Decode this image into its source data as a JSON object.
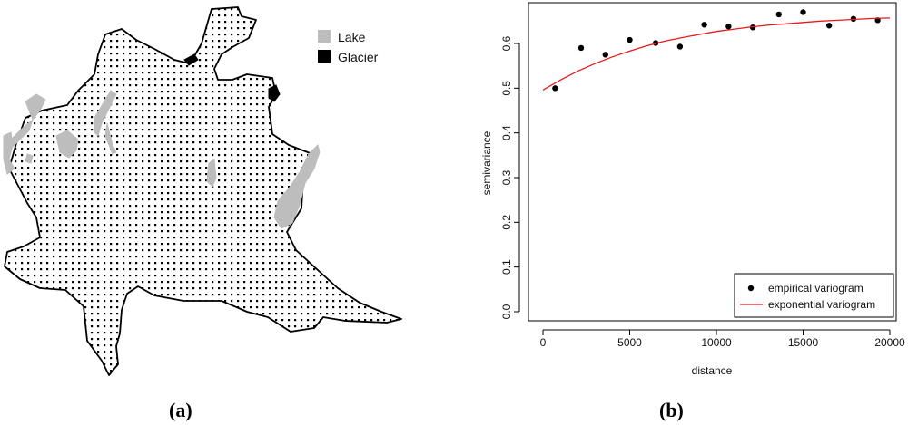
{
  "panel_a": {
    "label": "(a)",
    "legend": [
      {
        "label": "Lake",
        "color": "#bdbdbd"
      },
      {
        "label": "Glacier",
        "color": "#000000"
      }
    ]
  },
  "panel_b": {
    "label": "(b)"
  },
  "chart_data": {
    "type": "scatter",
    "xlabel": "distance",
    "ylabel": "semivariance",
    "xlim": [
      0,
      20000
    ],
    "ylim": [
      0,
      0.7
    ],
    "xticks": [
      0,
      5000,
      10000,
      15000,
      20000
    ],
    "yticks": [
      0.0,
      0.1,
      0.2,
      0.3,
      0.4,
      0.5,
      0.6
    ],
    "ytick_labels": [
      "0.0",
      "0.1",
      "0.2",
      "0.3",
      "0.4",
      "0.5",
      "0.6"
    ],
    "legend_position": "bottom-right",
    "series": [
      {
        "name": "empirical variogram",
        "kind": "points",
        "color": "#000000",
        "x": [
          700,
          2200,
          3600,
          5000,
          6500,
          7900,
          9300,
          10700,
          12100,
          13600,
          15000,
          16500,
          17900,
          19300
        ],
        "y": [
          0.5,
          0.59,
          0.575,
          0.608,
          0.601,
          0.593,
          0.642,
          0.638,
          0.636,
          0.665,
          0.67,
          0.64,
          0.655,
          0.652
        ]
      },
      {
        "name": "exponential variogram",
        "kind": "line",
        "color": "#e41a1c",
        "x": [
          0,
          1000,
          2000,
          3000,
          4000,
          5000,
          6000,
          7000,
          8000,
          9000,
          10000,
          11000,
          12000,
          13000,
          14000,
          15000,
          16000,
          17000,
          18000,
          19000,
          20000
        ],
        "y": [
          0.496,
          0.518,
          0.538,
          0.555,
          0.57,
          0.583,
          0.595,
          0.605,
          0.613,
          0.62,
          0.627,
          0.632,
          0.637,
          0.641,
          0.644,
          0.647,
          0.65,
          0.652,
          0.654,
          0.656,
          0.657
        ]
      }
    ]
  }
}
